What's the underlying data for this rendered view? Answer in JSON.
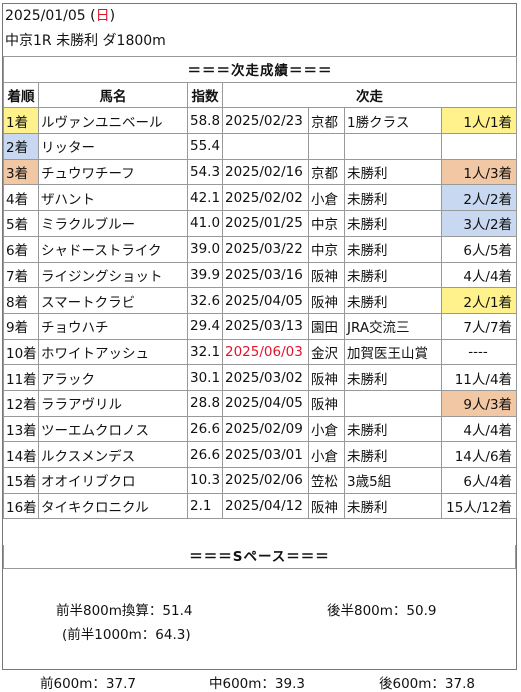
{
  "header": {
    "date": "2025/01/05",
    "dow_open": " (",
    "dow": "日",
    "dow_close": ")",
    "race": "中京1R 未勝利 ダ1800m"
  },
  "section_next": "＝＝＝次走成績＝＝＝",
  "columns": {
    "rank": "着順",
    "name": "馬名",
    "index": "指数",
    "next": "次走"
  },
  "rows": [
    {
      "rank": "1着",
      "name": "ルヴァンユニベール",
      "index": "58.8",
      "date": "2025/02/23",
      "venue": "京都",
      "cls": "1勝クラス",
      "result": "1人/1着",
      "rank_hl": "yellow",
      "result_hl": "yellow",
      "date_red": false
    },
    {
      "rank": "2着",
      "name": "リッター",
      "index": "55.4",
      "date": "",
      "venue": "",
      "cls": "",
      "result": "",
      "rank_hl": "blue",
      "result_hl": "",
      "date_red": false
    },
    {
      "rank": "3着",
      "name": "チュウワチーフ",
      "index": "54.3",
      "date": "2025/02/16",
      "venue": "京都",
      "cls": "未勝利",
      "result": "1人/3着",
      "rank_hl": "orange",
      "result_hl": "orange",
      "date_red": false
    },
    {
      "rank": "4着",
      "name": "ザハント",
      "index": "42.1",
      "date": "2025/02/02",
      "venue": "小倉",
      "cls": "未勝利",
      "result": "2人/2着",
      "rank_hl": "",
      "result_hl": "blue",
      "date_red": false
    },
    {
      "rank": "5着",
      "name": "ミラクルブルー",
      "index": "41.0",
      "date": "2025/01/25",
      "venue": "中京",
      "cls": "未勝利",
      "result": "3人/2着",
      "rank_hl": "",
      "result_hl": "blue",
      "date_red": false
    },
    {
      "rank": "6着",
      "name": "シャドーストライク",
      "index": "39.0",
      "date": "2025/03/22",
      "venue": "中京",
      "cls": "未勝利",
      "result": "6人/5着",
      "rank_hl": "",
      "result_hl": "",
      "date_red": false
    },
    {
      "rank": "7着",
      "name": "ライジングショット",
      "index": "39.9",
      "date": "2025/03/16",
      "venue": "阪神",
      "cls": "未勝利",
      "result": "4人/4着",
      "rank_hl": "",
      "result_hl": "",
      "date_red": false
    },
    {
      "rank": "8着",
      "name": "スマートクラビ",
      "index": "32.6",
      "date": "2025/04/05",
      "venue": "阪神",
      "cls": "未勝利",
      "result": "2人/1着",
      "rank_hl": "",
      "result_hl": "yellow",
      "date_red": false
    },
    {
      "rank": "9着",
      "name": "チョウハチ",
      "index": "29.4",
      "date": "2025/03/13",
      "venue": "園田",
      "cls": "JRA交流三",
      "result": "7人/7着",
      "rank_hl": "",
      "result_hl": "",
      "date_red": false
    },
    {
      "rank": "10着",
      "name": "ホワイトアッシュ",
      "index": "32.1",
      "date": "2025/06/03",
      "venue": "金沢",
      "cls": "加賀医王山賞",
      "result": "----",
      "rank_hl": "",
      "result_hl": "",
      "date_red": true
    },
    {
      "rank": "11着",
      "name": "アラック",
      "index": "30.1",
      "date": "2025/03/02",
      "venue": "阪神",
      "cls": "未勝利",
      "result": "11人/4着",
      "rank_hl": "",
      "result_hl": "",
      "date_red": false
    },
    {
      "rank": "12着",
      "name": "ララアヴリル",
      "index": "28.8",
      "date": "2025/04/05",
      "venue": "阪神",
      "cls": "",
      "result": "9人/3着",
      "rank_hl": "",
      "result_hl": "orange",
      "date_red": false
    },
    {
      "rank": "13着",
      "name": "ツーエムクロノス",
      "index": "26.6",
      "date": "2025/02/09",
      "venue": "小倉",
      "cls": "未勝利",
      "result": "4人/4着",
      "rank_hl": "",
      "result_hl": "",
      "date_red": false
    },
    {
      "rank": "14着",
      "name": "ルクスメンデス",
      "index": "26.6",
      "date": "2025/03/01",
      "venue": "小倉",
      "cls": "未勝利",
      "result": "14人/6着",
      "rank_hl": "",
      "result_hl": "",
      "date_red": false
    },
    {
      "rank": "15着",
      "name": "オオイリブクロ",
      "index": "10.3",
      "date": "2025/02/06",
      "venue": "笠松",
      "cls": "3歳5組",
      "result": "6人/4着",
      "rank_hl": "",
      "result_hl": "",
      "date_red": false
    },
    {
      "rank": "16着",
      "name": "タイキクロニクル",
      "index": "2.1",
      "date": "2025/04/12",
      "venue": "阪神",
      "cls": "未勝利",
      "result": "15人/12着",
      "rank_hl": "",
      "result_hl": "",
      "date_red": false
    }
  ],
  "pace": {
    "title": "＝＝＝Sペース＝＝＝",
    "first800": "前半800m換算：51.4",
    "first1000": "(前半1000m：64.3)",
    "last800": "後半800m：50.9",
    "early600": "前600m：37.7",
    "mid600": "中600m：39.3",
    "late600": "後600m：37.8"
  },
  "colors": {
    "yellow": "#fff28c",
    "blue": "#c8d8f0",
    "orange": "#f2c8a4",
    "red": "#e0142c"
  }
}
